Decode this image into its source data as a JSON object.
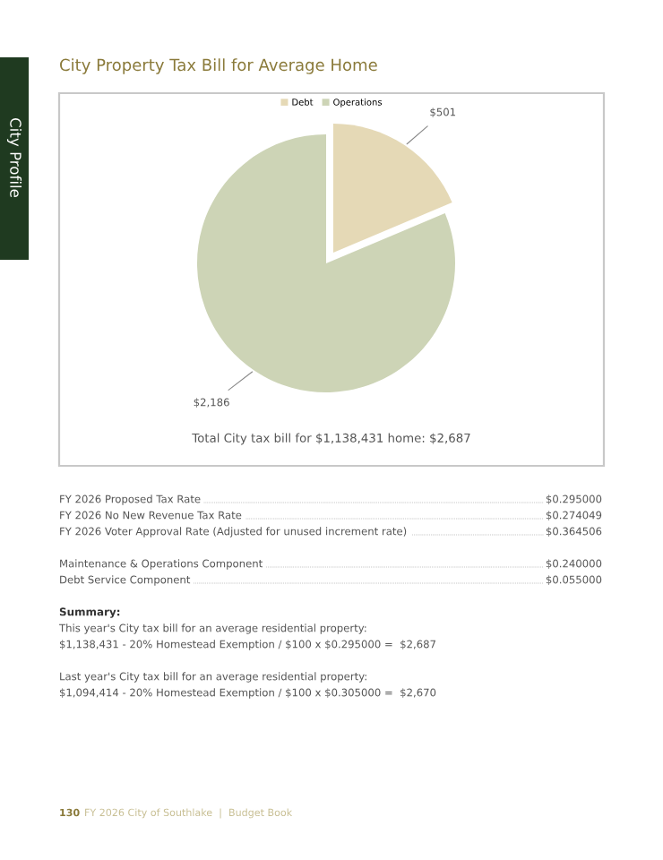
{
  "chart_data": {
    "type": "pie",
    "title": "City Property Tax Bill for Average Home",
    "categories": [
      "Debt",
      "Operations"
    ],
    "values": [
      501,
      2186
    ],
    "colors": [
      "#e5d9b6",
      "#cdd4b6"
    ],
    "value_labels": [
      "$501",
      "$2,186"
    ],
    "legend": "top",
    "annotations": [
      "Total City tax bill for $1,138,431 home: $2,687",
      "FY 2026 Proposed Tax Rate",
      "$0.295000",
      "FY 2026 No New Revenue Tax Rate",
      "$0.274049",
      "FY 2026 Voter Approval Rate (Adjusted for unused increment rate)",
      "$0.364506",
      "Maintenance & Operations Component",
      "$0.240000",
      "Debt Service Component",
      "$0.055000",
      "Summary:",
      "This year's City tax bill for an average residential property:",
      "$1,138,431 - 20% Homestead Exemption / $100 x $0.295000 =  $2,687",
      "Last year's City tax bill for an average residential property:",
      "$1,094,414 - 20% Homestead Exemption / $100 x $0.305000 =  $2,670",
      "130",
      "FY 2026 City of Southlake  |  Budget Book",
      "City Profile"
    ]
  }
}
